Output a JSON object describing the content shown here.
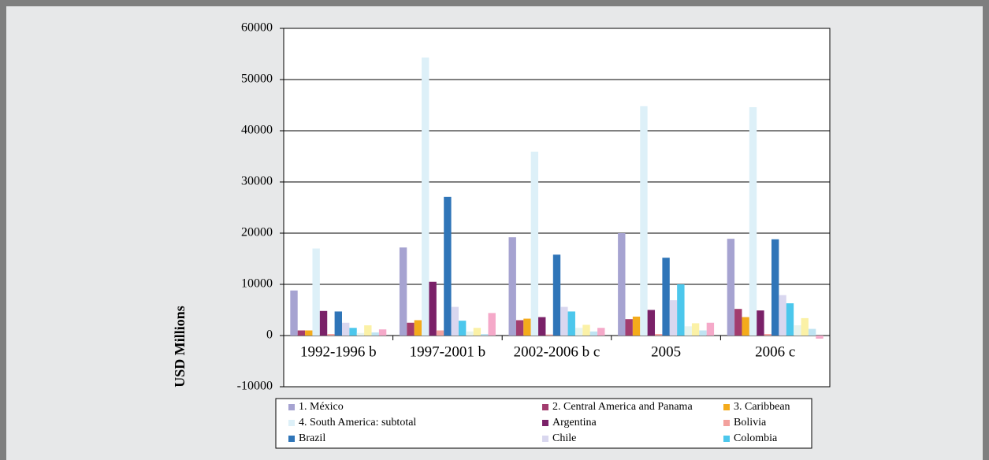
{
  "chart_data": {
    "type": "bar",
    "y_label": "USD Millions",
    "categories": [
      "1992-1996 b",
      "1997-2001 b",
      "2002-2006 b c",
      "2005",
      "2006 c"
    ],
    "ylim": [
      -10000,
      60000
    ],
    "yticks": [
      -10000,
      0,
      10000,
      20000,
      30000,
      40000,
      50000,
      60000
    ],
    "grid": true,
    "series": [
      {
        "name": "1. México",
        "color": "#a6a3d1",
        "values": [
          8800,
          17200,
          19200,
          20000,
          18900
        ]
      },
      {
        "name": "2. Central America and Panama",
        "color": "#a23c6e",
        "values": [
          1000,
          2500,
          3000,
          3200,
          5200
        ]
      },
      {
        "name": "3. Caribbean",
        "color": "#f4ab1b",
        "values": [
          1000,
          3000,
          3300,
          3700,
          3600
        ]
      },
      {
        "name": "4. South America: subtotal",
        "color": "#ddf0f8",
        "values": [
          17000,
          54300,
          35900,
          44800,
          44600
        ]
      },
      {
        "name": "Argentina",
        "color": "#7a2168",
        "values": [
          4800,
          10500,
          3600,
          5000,
          4900
        ]
      },
      {
        "name": "Bolivia",
        "color": "#f3a19d",
        "values": [
          300,
          1000,
          200,
          300,
          300
        ]
      },
      {
        "name": "Brazil",
        "color": "#2f75b8",
        "values": [
          4700,
          27100,
          15800,
          15200,
          18800
        ]
      },
      {
        "name": "Chile",
        "color": "#d9d7ef",
        "values": [
          2500,
          5600,
          5600,
          6900,
          7900
        ]
      },
      {
        "name": "Colombia",
        "color": "#4cc7ec",
        "values": [
          1500,
          2900,
          4700,
          10000,
          6300
        ]
      },
      {
        "color": "#e8f3ee",
        "values": [
          500,
          800,
          1500,
          1800,
          2000
        ]
      },
      {
        "color": "#fbf1a6",
        "values": [
          2000,
          1500,
          2100,
          2400,
          3400
        ]
      },
      {
        "color": "#bfe3f2",
        "values": [
          600,
          300,
          800,
          1000,
          1300
        ]
      },
      {
        "color": "#f5a9c9",
        "values": [
          1200,
          4400,
          1500,
          2500,
          -600
        ]
      }
    ]
  }
}
